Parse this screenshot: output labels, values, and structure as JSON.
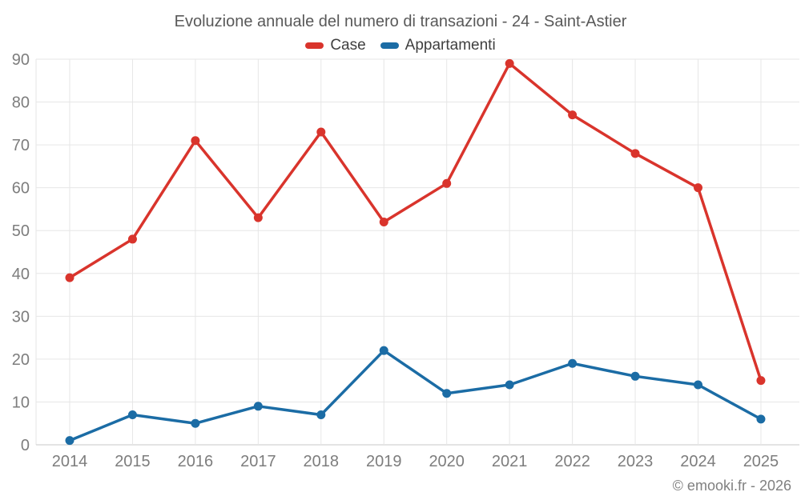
{
  "title": "Evoluzione annuale del numero di transazioni - 24 - Saint-Astier",
  "footer": "© emooki.fr - 2026",
  "chart_data": {
    "type": "line",
    "title": "Evoluzione annuale del numero di transazioni - 24 - Saint-Astier",
    "categories": [
      "2014",
      "2015",
      "2016",
      "2017",
      "2018",
      "2019",
      "2020",
      "2021",
      "2022",
      "2023",
      "2024",
      "2025"
    ],
    "series": [
      {
        "name": "Case",
        "color": "#d9342c",
        "values": [
          39,
          48,
          71,
          53,
          73,
          52,
          61,
          89,
          77,
          68,
          60,
          15
        ]
      },
      {
        "name": "Appartamenti",
        "color": "#1b6ca5",
        "values": [
          1,
          7,
          5,
          9,
          7,
          22,
          12,
          14,
          19,
          16,
          14,
          6
        ]
      }
    ],
    "xlabel": "",
    "ylabel": "",
    "ylim": [
      0,
      90
    ],
    "yticks": [
      0,
      10,
      20,
      30,
      40,
      50,
      60,
      70,
      80,
      90
    ],
    "grid": true,
    "legend_position": "top",
    "grid_color": "#e6e6e6",
    "axis_line_color": "#c9c9c9"
  }
}
